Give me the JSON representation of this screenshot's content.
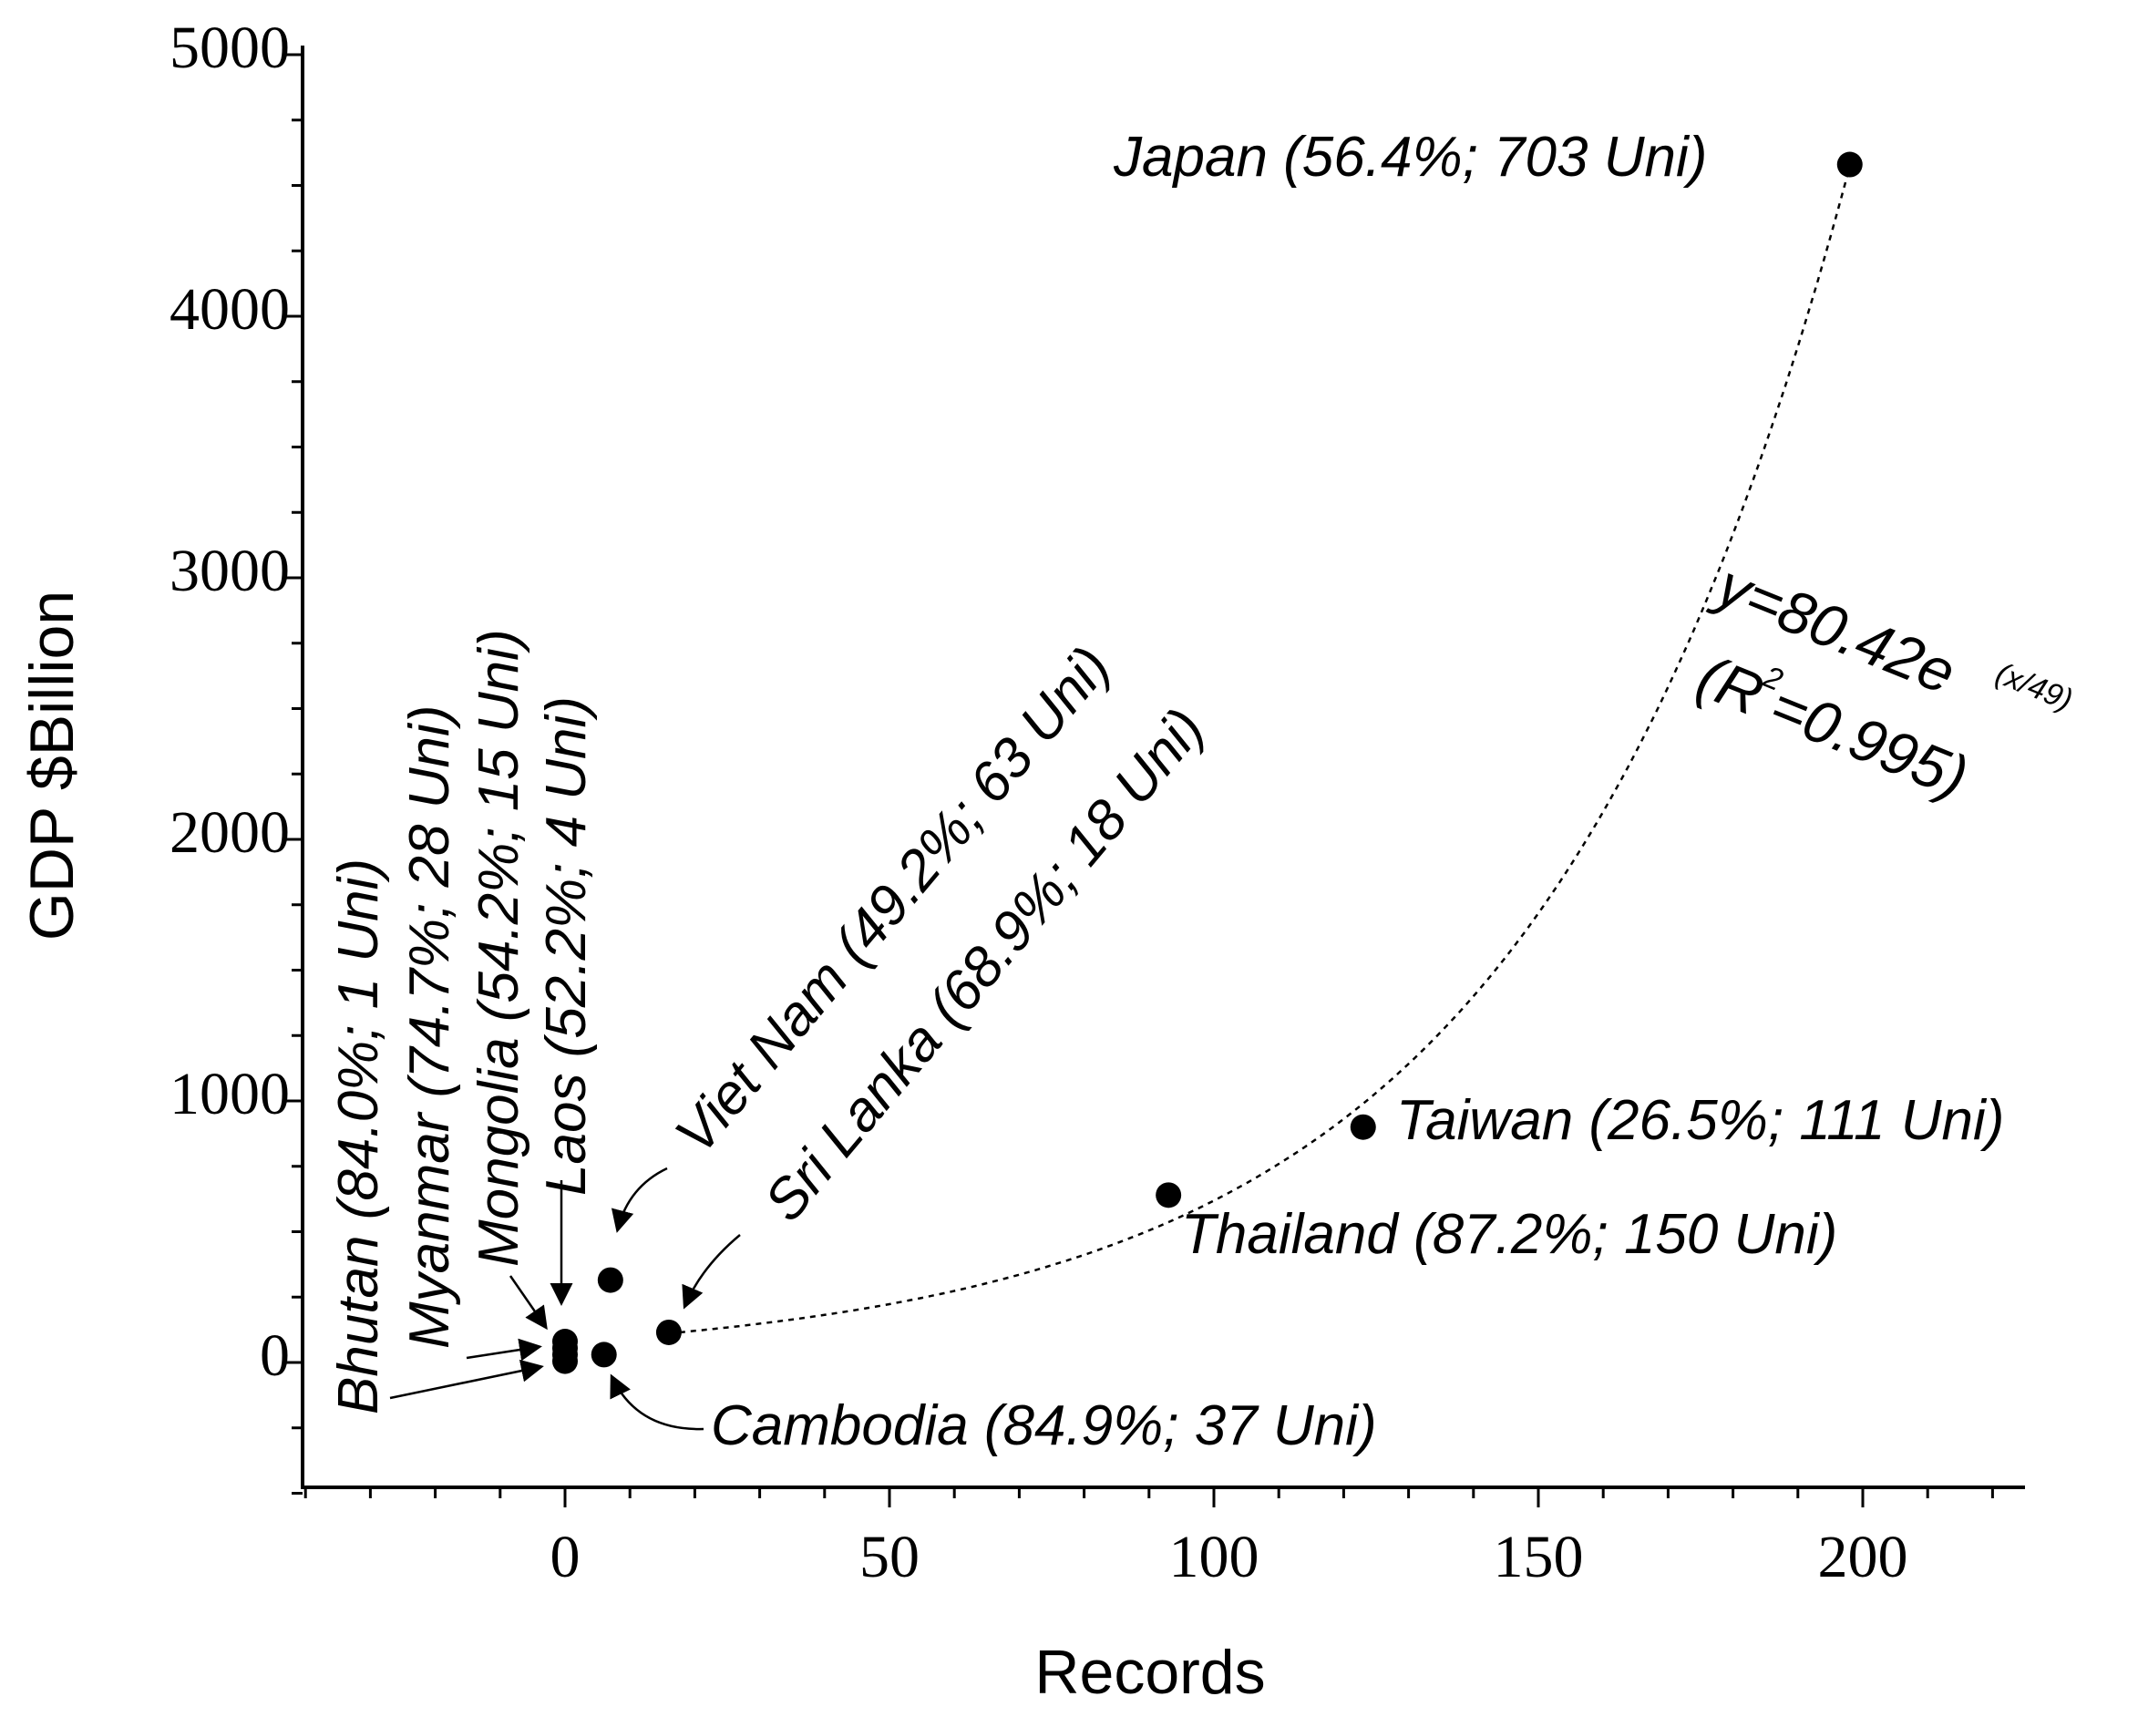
{
  "chart_data": {
    "type": "scatter",
    "title": "",
    "xlabel": "Records",
    "ylabel": "GDP $Billion",
    "xlim": [
      -40,
      225
    ],
    "ylim": [
      -500,
      5000
    ],
    "x_ticks": [
      0,
      50,
      100,
      150,
      200
    ],
    "y_ticks": [
      0,
      1000,
      2000,
      3000,
      4000,
      5000
    ],
    "grid": false,
    "points": [
      {
        "name": "Japan",
        "x": 198,
        "y": 4580,
        "label": "Japan (56.4%; 703 Uni)"
      },
      {
        "name": "Taiwan",
        "x": 123,
        "y": 900,
        "label": "Taiwan (26.5%; 111 Uni)"
      },
      {
        "name": "Thailand",
        "x": 93,
        "y": 640,
        "label": "Thailand (87.2%; 150 Uni)"
      },
      {
        "name": "Viet Nam",
        "x": 7,
        "y": 315,
        "label": "Viet Nam (49.2%; 63 Uni)"
      },
      {
        "name": "Sri Lanka",
        "x": 16,
        "y": 115,
        "label": "Sri Lanka (68.9%; 18 Uni)"
      },
      {
        "name": "Cambodia",
        "x": 6,
        "y": 30,
        "label": "Cambodia (84.9%; 37 Uni)"
      },
      {
        "name": "Laos",
        "x": 0,
        "y": 80,
        "label": "Laos (52.2%; 4 Uni)"
      },
      {
        "name": "Mongolia",
        "x": 0,
        "y": 55,
        "label": "Mongolia (54.2%; 15 Uni)"
      },
      {
        "name": "Myanmar",
        "x": 0,
        "y": 30,
        "label": "Myanmar (74.7%; 28 Uni)"
      },
      {
        "name": "Bhutan",
        "x": 0,
        "y": 5,
        "label": "Bhutan (84.0%; 1 Uni)"
      }
    ],
    "fit": {
      "type": "exponential",
      "a": 80.42,
      "b": 49,
      "x_range": [
        16,
        198
      ],
      "equation_main": "y=80.42e",
      "equation_exponent": "(x/49)",
      "r2_prefix": "(R",
      "r2_sup": "2",
      "r2_suffix": "=0.995)"
    }
  }
}
